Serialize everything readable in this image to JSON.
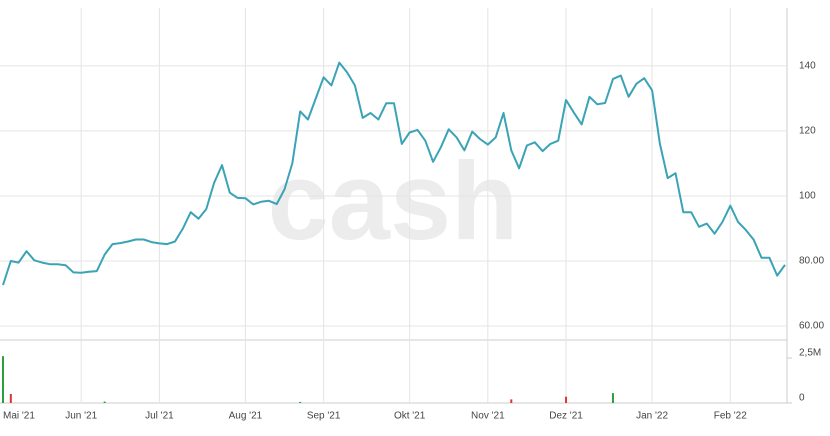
{
  "chart_data": {
    "type": "line",
    "watermark": "cash",
    "categories": [
      "Mai '21",
      null,
      null,
      null,
      null,
      null,
      null,
      null,
      null,
      null,
      "Jun '21",
      null,
      null,
      null,
      null,
      null,
      null,
      null,
      null,
      null,
      "Jul '21",
      null,
      null,
      null,
      null,
      null,
      null,
      null,
      null,
      null,
      null,
      "Aug '21",
      null,
      null,
      null,
      null,
      null,
      null,
      null,
      null,
      null,
      "Sep '21",
      null,
      null,
      null,
      null,
      null,
      null,
      null,
      null,
      null,
      null,
      "Okt '21",
      null,
      null,
      null,
      null,
      null,
      null,
      null,
      null,
      null,
      "Nov '21",
      null,
      null,
      null,
      null,
      null,
      null,
      null,
      null,
      null,
      "Dez '21",
      null,
      null,
      null,
      null,
      null,
      null,
      null,
      null,
      null,
      null,
      "Jan '22",
      null,
      null,
      null,
      null,
      null,
      null,
      null,
      null,
      null,
      "Feb '22",
      null,
      null,
      null,
      null,
      null,
      null,
      null
    ],
    "series": [
      {
        "color": "#3aa3b5",
        "values": [
          72.6,
          80,
          79.5,
          83,
          80.2,
          79.5,
          79,
          79,
          78.7,
          76.5,
          76.4,
          76.7,
          76.9,
          82,
          85.2,
          85.5,
          86,
          86.6,
          86.6,
          85.8,
          85.4,
          85.2,
          86,
          90,
          95,
          93,
          96,
          104,
          109.5,
          101,
          99.4,
          99.3,
          97.4,
          98.2,
          98.5,
          97.5,
          102,
          110,
          126,
          123.5,
          130,
          136.5,
          134,
          141,
          138,
          134,
          124,
          125.5,
          123.5,
          128.5,
          128.5,
          116,
          119.5,
          120.3,
          117,
          110.5,
          115,
          120.5,
          118,
          114,
          119.8,
          117.5,
          115.8,
          118,
          125.5,
          114,
          108.5,
          115.5,
          116.5,
          113.8,
          116,
          117,
          129.5,
          125.6,
          122,
          130.5,
          128.2,
          128.6,
          136,
          137,
          130.5,
          134.5,
          136.2,
          132.5,
          116,
          105.5,
          107,
          95,
          95,
          90.5,
          91.5,
          88.4,
          92,
          97,
          92,
          89.5,
          86.5,
          81,
          81,
          75.5,
          78.8
        ]
      }
    ],
    "volume": {
      "axis": "y2",
      "values": [
        2600000,
        500000,
        0,
        0,
        0,
        0,
        0,
        0,
        0,
        0,
        0,
        0,
        0,
        80000,
        0,
        0,
        0,
        0,
        0,
        0,
        0,
        0,
        0,
        0,
        0,
        0,
        0,
        0,
        0,
        0,
        0,
        0,
        0,
        0,
        0,
        0,
        0,
        0,
        60000,
        0,
        0,
        0,
        0,
        0,
        0,
        0,
        0,
        0,
        0,
        0,
        0,
        0,
        0,
        0,
        0,
        0,
        0,
        0,
        0,
        0,
        0,
        0,
        0,
        0,
        0,
        200000,
        0,
        0,
        0,
        0,
        0,
        0,
        350000,
        0,
        0,
        0,
        0,
        0,
        550000,
        0,
        0,
        0,
        0,
        0,
        0,
        0,
        0,
        0,
        0,
        0,
        0,
        0,
        0,
        0,
        0,
        0,
        0,
        0,
        0,
        0,
        0
      ],
      "up_color": "#2e9e3a",
      "down_color": "#e0342c",
      "down": [
        1,
        65,
        72
      ]
    },
    "ylim": [
      55.7,
      157.8
    ],
    "yticks": [
      {
        "value": 60,
        "label": "60.00"
      },
      {
        "value": 80,
        "label": "80.00"
      },
      100,
      120,
      140
    ],
    "y2lim": [
      0,
      3220000
    ],
    "y2ticks": [
      0,
      {
        "value": 2500000,
        "label": "2,5M"
      }
    ],
    "grid": true
  }
}
